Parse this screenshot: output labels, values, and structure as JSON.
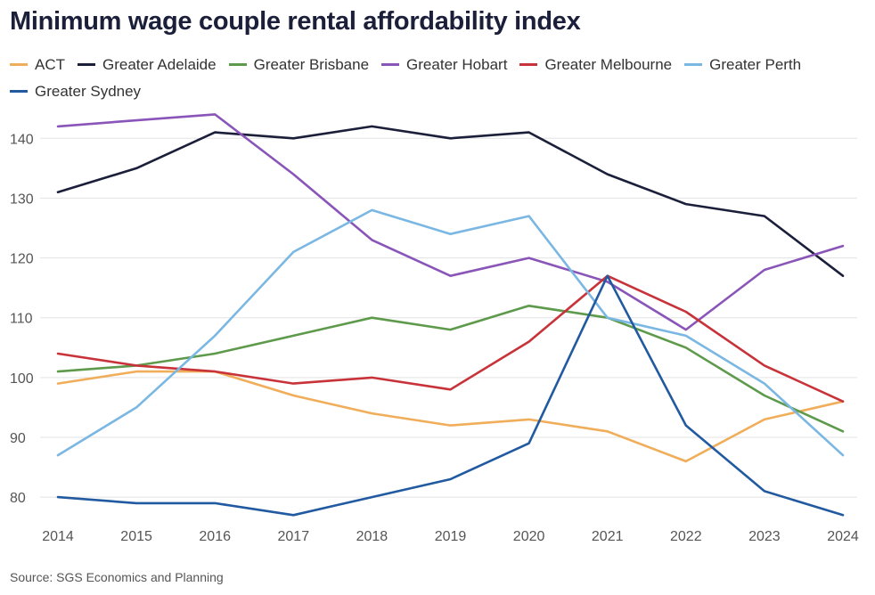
{
  "chart_data": {
    "type": "line",
    "title": "Minimum wage couple rental affordability index",
    "xlabel": "",
    "ylabel": "",
    "x": [
      2014,
      2015,
      2016,
      2017,
      2018,
      2019,
      2020,
      2021,
      2022,
      2023,
      2024
    ],
    "x_labels": [
      "2014",
      "2015",
      "2016",
      "2017",
      "2018",
      "2019",
      "2020",
      "2021",
      "2022",
      "2023",
      "2024"
    ],
    "ylim": [
      76,
      146
    ],
    "yticks": [
      80,
      90,
      100,
      110,
      120,
      130,
      140
    ],
    "ytick_labels": [
      "80",
      "90",
      "100",
      "110",
      "120",
      "130",
      "140"
    ],
    "grid": true,
    "legend_position": "top",
    "series": [
      {
        "name": "ACT",
        "color": "#f0ad5a",
        "values": [
          99,
          101,
          101,
          97,
          94,
          92,
          93,
          91,
          86,
          93,
          96
        ]
      },
      {
        "name": "Greater Adelaide",
        "color": "#1b1f3a",
        "values": [
          131,
          135,
          141,
          140,
          142,
          140,
          141,
          134,
          129,
          127,
          117
        ]
      },
      {
        "name": "Greater Brisbane",
        "color": "#5e9a4b",
        "values": [
          101,
          102,
          104,
          107,
          110,
          108,
          112,
          110,
          105,
          97,
          91
        ]
      },
      {
        "name": "Greater Hobart",
        "color": "#8a55b8",
        "values": [
          142,
          143,
          144,
          134,
          123,
          117,
          120,
          116,
          108,
          118,
          122
        ]
      },
      {
        "name": "Greater Melbourne",
        "color": "#c8333a",
        "values": [
          104,
          102,
          101,
          99,
          100,
          98,
          106,
          117,
          111,
          102,
          96
        ]
      },
      {
        "name": "Greater Perth",
        "color": "#7ab7e2",
        "values": [
          87,
          95,
          107,
          121,
          128,
          124,
          127,
          110,
          107,
          99,
          87
        ]
      },
      {
        "name": "Greater Sydney",
        "color": "#215aa0",
        "values": [
          80,
          79,
          79,
          77,
          80,
          83,
          89,
          117,
          92,
          81,
          77
        ]
      }
    ]
  },
  "source": "Source: SGS Economics and Planning"
}
